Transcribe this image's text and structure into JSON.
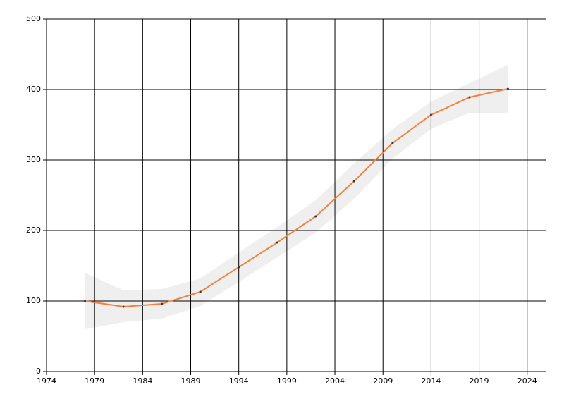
{
  "chart_data": {
    "type": "line",
    "x": [
      1978,
      1982,
      1986,
      1990,
      1994,
      1998,
      2002,
      2006,
      2010,
      2014,
      2018,
      2022
    ],
    "values": [
      100,
      92,
      96,
      113,
      148,
      183,
      220,
      270,
      324,
      364,
      389,
      401
    ],
    "upper": [
      140,
      115,
      117,
      132,
      169,
      205,
      243,
      295,
      344,
      383,
      409,
      435
    ],
    "lower": [
      60,
      70,
      75,
      93,
      127,
      162,
      197,
      245,
      302,
      344,
      367,
      367
    ],
    "color": "#f5803e",
    "band_color": "#efefef",
    "point_color": "#333333",
    "xlim": [
      1974,
      2026
    ],
    "xticks": [
      1974,
      1979,
      1984,
      1989,
      1994,
      1999,
      2004,
      2009,
      2014,
      2019,
      2024
    ],
    "ylim": [
      0,
      500
    ],
    "yticks": [
      0,
      100,
      200,
      300,
      400,
      500
    ],
    "grid": true
  }
}
